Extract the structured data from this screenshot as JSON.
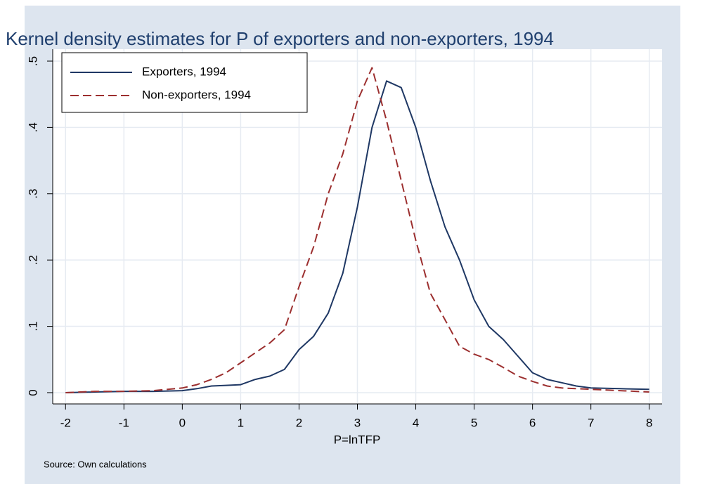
{
  "chart_data": {
    "type": "line",
    "title": "Kernel density estimates for P of exporters and non-exporters, 1994",
    "x_label": "P=lnTFP",
    "note": "Source: Own calculations",
    "x": [
      -2,
      -1.5,
      -1,
      -0.5,
      0,
      0.25,
      0.5,
      0.75,
      1,
      1.25,
      1.5,
      1.75,
      2,
      2.25,
      2.5,
      2.75,
      3,
      3.25,
      3.5,
      3.75,
      4,
      4.25,
      4.5,
      4.75,
      5,
      5.25,
      5.5,
      5.75,
      6,
      6.25,
      6.5,
      6.75,
      7,
      7.5,
      8
    ],
    "series": [
      {
        "name": "Exporters, 1994",
        "color": "#1f3864",
        "dash": "solid",
        "values": [
          0,
          0.001,
          0.002,
          0.002,
          0.003,
          0.006,
          0.01,
          0.011,
          0.012,
          0.02,
          0.025,
          0.035,
          0.065,
          0.085,
          0.12,
          0.18,
          0.28,
          0.4,
          0.47,
          0.46,
          0.4,
          0.32,
          0.25,
          0.2,
          0.14,
          0.1,
          0.08,
          0.055,
          0.03,
          0.02,
          0.015,
          0.01,
          0.007,
          0.006,
          0.005
        ]
      },
      {
        "name": "Non-exporters, 1994",
        "color": "#9c2f2f",
        "dash": "dashed",
        "values": [
          0,
          0.002,
          0.002,
          0.003,
          0.007,
          0.012,
          0.02,
          0.03,
          0.045,
          0.06,
          0.075,
          0.095,
          0.16,
          0.22,
          0.3,
          0.36,
          0.44,
          0.49,
          0.41,
          0.32,
          0.23,
          0.15,
          0.11,
          0.07,
          0.058,
          0.05,
          0.038,
          0.025,
          0.017,
          0.01,
          0.007,
          0.006,
          0.005,
          0.003,
          0.001
        ]
      }
    ],
    "xlim": [
      -2.22,
      8.22
    ],
    "ylim": [
      -0.017,
      0.518
    ],
    "xticks": [
      -2,
      -1,
      0,
      1,
      2,
      3,
      4,
      5,
      6,
      7,
      8
    ],
    "yticks": [
      0,
      {
        "value": 0.1,
        "label": ".1"
      },
      {
        "value": 0.2,
        "label": ".2"
      },
      {
        "value": 0.3,
        "label": ".3"
      },
      {
        "value": 0.4,
        "label": ".4"
      },
      {
        "value": 0.5,
        "label": ".5"
      }
    ],
    "grid": true,
    "legend": "top-left"
  }
}
